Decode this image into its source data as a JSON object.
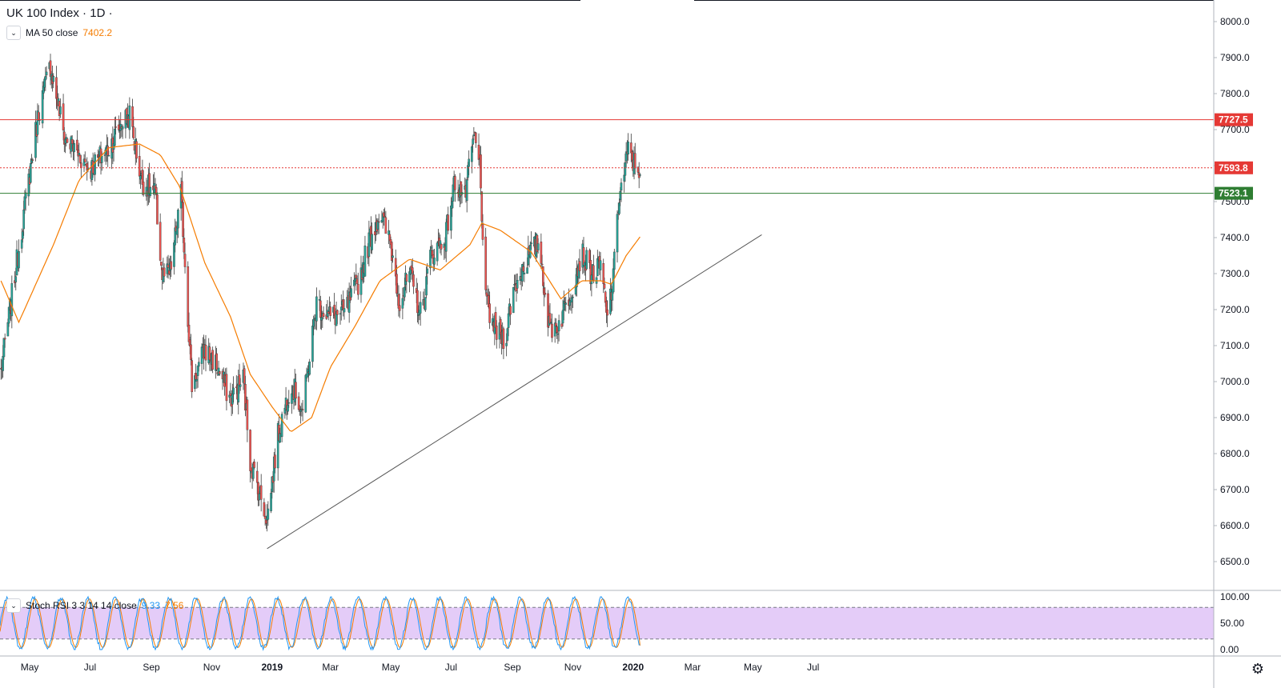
{
  "header": {
    "title": "UK 100 Index · 1D ·",
    "ma_label": "MA 50 close",
    "ma_value": "7402.2",
    "stoch_label": "Stoch RSI 3 3 14 14 close",
    "stoch_k": "9.33",
    "stoch_d": "7.56"
  },
  "colors": {
    "up": "#26a69a",
    "down": "#ef5350",
    "ma": "#f57c00",
    "resistance": "#e53935",
    "support": "#2e7d32",
    "trendline": "#555555",
    "stoch_k": "#2196f3",
    "stoch_d": "#f57c00",
    "stoch_band": "#e1c6f7"
  },
  "chart_data": [
    {
      "type": "candlestick",
      "symbol": "UK 100 Index",
      "timeframe": "1D",
      "ylim": [
        6420,
        8060
      ],
      "y_ticks": [
        "6500.0",
        "6600.0",
        "6700.0",
        "6800.0",
        "6900.0",
        "7000.0",
        "7100.0",
        "7200.0",
        "7300.0",
        "7400.0",
        "7500.0",
        "7600.0",
        "7700.0",
        "7800.0",
        "7900.0",
        "8000.0"
      ],
      "x_tick_labels": [
        "May",
        "Jul",
        "Sep",
        "Nov",
        "2019",
        "Mar",
        "May",
        "Jul",
        "Sep",
        "Nov",
        "2020",
        "Mar",
        "May",
        "Jul"
      ],
      "horizontal_levels": [
        {
          "value": 7727.5,
          "label": "7727.5",
          "style": "solid",
          "color": "#e53935"
        },
        {
          "value": 7593.8,
          "label": "7593.8",
          "style": "dotted",
          "color": "#e53935"
        },
        {
          "value": 7523.1,
          "label": "7523.1",
          "style": "solid",
          "color": "#2e7d32"
        }
      ],
      "trendline": {
        "start": [
          "2018-12-27",
          6536
        ],
        "end": [
          "2020-05-10",
          7408
        ]
      },
      "close_anchors": [
        [
          "2018-04-02",
          7030
        ],
        [
          "2018-04-20",
          7370
        ],
        [
          "2018-05-10",
          7750
        ],
        [
          "2018-05-22",
          7880
        ],
        [
          "2018-06-05",
          7680
        ],
        [
          "2018-06-20",
          7630
        ],
        [
          "2018-07-01",
          7590
        ],
        [
          "2018-07-20",
          7650
        ],
        [
          "2018-08-02",
          7720
        ],
        [
          "2018-08-10",
          7740
        ],
        [
          "2018-08-22",
          7560
        ],
        [
          "2018-09-05",
          7520
        ],
        [
          "2018-09-12",
          7290
        ],
        [
          "2018-09-20",
          7300
        ],
        [
          "2018-10-01",
          7520
        ],
        [
          "2018-10-05",
          7330
        ],
        [
          "2018-10-12",
          6990
        ],
        [
          "2018-10-25",
          7090
        ],
        [
          "2018-11-05",
          7050
        ],
        [
          "2018-11-20",
          6950
        ],
        [
          "2018-12-03",
          7010
        ],
        [
          "2018-12-10",
          6780
        ],
        [
          "2018-12-27",
          6620
        ],
        [
          "2019-01-07",
          6850
        ],
        [
          "2019-01-20",
          7000
        ],
        [
          "2019-02-01",
          6920
        ],
        [
          "2019-02-15",
          7220
        ],
        [
          "2019-03-01",
          7180
        ],
        [
          "2019-03-15",
          7190
        ],
        [
          "2019-03-30",
          7280
        ],
        [
          "2019-04-10",
          7400
        ],
        [
          "2019-04-20",
          7470
        ],
        [
          "2019-05-01",
          7380
        ],
        [
          "2019-05-10",
          7220
        ],
        [
          "2019-05-20",
          7300
        ],
        [
          "2019-06-01",
          7180
        ],
        [
          "2019-06-10",
          7350
        ],
        [
          "2019-06-25",
          7400
        ],
        [
          "2019-07-05",
          7560
        ],
        [
          "2019-07-15",
          7510
        ],
        [
          "2019-07-24",
          7680
        ],
        [
          "2019-07-30",
          7600
        ],
        [
          "2019-08-05",
          7220
        ],
        [
          "2019-08-15",
          7140
        ],
        [
          "2019-08-25",
          7120
        ],
        [
          "2019-09-01",
          7250
        ],
        [
          "2019-09-15",
          7340
        ],
        [
          "2019-09-28",
          7390
        ],
        [
          "2019-10-08",
          7150
        ],
        [
          "2019-10-18",
          7160
        ],
        [
          "2019-10-31",
          7260
        ],
        [
          "2019-11-10",
          7360
        ],
        [
          "2019-11-20",
          7300
        ],
        [
          "2019-11-30",
          7320
        ],
        [
          "2019-12-05",
          7180
        ],
        [
          "2019-12-12",
          7280
        ],
        [
          "2019-12-16",
          7480
        ],
        [
          "2019-12-27",
          7640
        ],
        [
          "2020-01-03",
          7600
        ],
        [
          "2020-01-08",
          7590
        ]
      ],
      "moving_average": {
        "name": "MA 50 close",
        "anchors": [
          [
            "2018-04-02",
            7280
          ],
          [
            "2018-04-20",
            7165
          ],
          [
            "2018-05-25",
            7380
          ],
          [
            "2018-06-20",
            7560
          ],
          [
            "2018-07-20",
            7650
          ],
          [
            "2018-08-20",
            7660
          ],
          [
            "2018-09-10",
            7630
          ],
          [
            "2018-09-30",
            7540
          ],
          [
            "2018-10-25",
            7330
          ],
          [
            "2018-11-20",
            7180
          ],
          [
            "2018-12-10",
            7020
          ],
          [
            "2019-01-01",
            6930
          ],
          [
            "2019-01-20",
            6860
          ],
          [
            "2019-02-10",
            6900
          ],
          [
            "2019-03-01",
            7040
          ],
          [
            "2019-03-25",
            7150
          ],
          [
            "2019-04-20",
            7280
          ],
          [
            "2019-05-20",
            7340
          ],
          [
            "2019-06-20",
            7310
          ],
          [
            "2019-07-20",
            7380
          ],
          [
            "2019-08-01",
            7440
          ],
          [
            "2019-08-20",
            7420
          ],
          [
            "2019-09-20",
            7360
          ],
          [
            "2019-10-20",
            7230
          ],
          [
            "2019-11-10",
            7280
          ],
          [
            "2019-11-30",
            7280
          ],
          [
            "2019-12-10",
            7270
          ],
          [
            "2019-12-25",
            7350
          ],
          [
            "2020-01-08",
            7402
          ]
        ]
      }
    },
    {
      "type": "line",
      "name": "Stoch RSI 3 3 14 14 close",
      "ylim": [
        0,
        100
      ],
      "y_ticks": [
        "0.00",
        "50.00",
        "100.00"
      ],
      "band": [
        20,
        80
      ],
      "series": [
        {
          "name": "K",
          "last": 9.33
        },
        {
          "name": "D",
          "last": 7.56
        }
      ]
    }
  ]
}
